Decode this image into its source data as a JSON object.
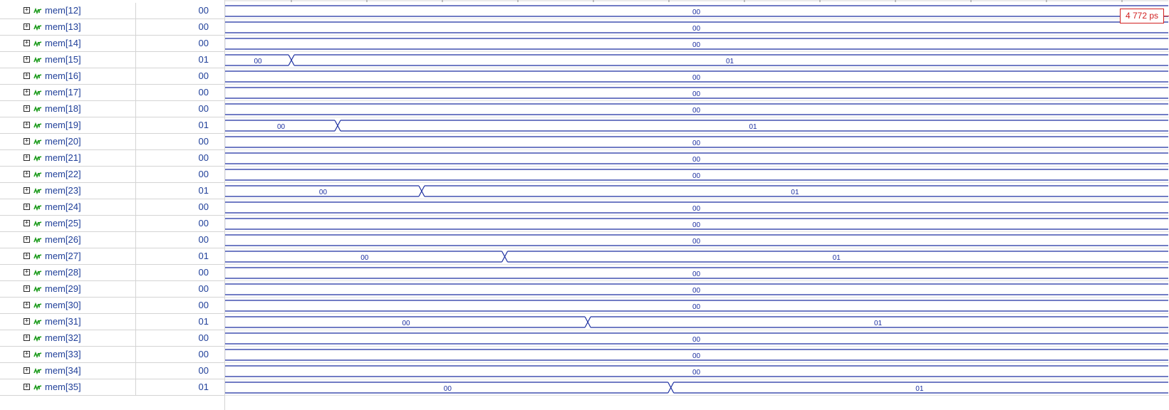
{
  "rows": [
    {
      "name": "mem[12]",
      "value": "00",
      "waveform": {
        "segments": [
          {
            "value": "00"
          }
        ],
        "transition_fraction": null
      }
    },
    {
      "name": "mem[13]",
      "value": "00",
      "waveform": {
        "segments": [
          {
            "value": "00"
          }
        ],
        "transition_fraction": null
      }
    },
    {
      "name": "mem[14]",
      "value": "00",
      "waveform": {
        "segments": [
          {
            "value": "00"
          }
        ],
        "transition_fraction": null
      }
    },
    {
      "name": "mem[15]",
      "value": "01",
      "waveform": {
        "segments": [
          {
            "value": "00"
          },
          {
            "value": "01"
          }
        ],
        "transition_fraction": 0.071
      }
    },
    {
      "name": "mem[16]",
      "value": "00",
      "waveform": {
        "segments": [
          {
            "value": "00"
          }
        ],
        "transition_fraction": null
      }
    },
    {
      "name": "mem[17]",
      "value": "00",
      "waveform": {
        "segments": [
          {
            "value": "00"
          }
        ],
        "transition_fraction": null
      }
    },
    {
      "name": "mem[18]",
      "value": "00",
      "waveform": {
        "segments": [
          {
            "value": "00"
          }
        ],
        "transition_fraction": null
      }
    },
    {
      "name": "mem[19]",
      "value": "01",
      "waveform": {
        "segments": [
          {
            "value": "00"
          },
          {
            "value": "01"
          }
        ],
        "transition_fraction": 0.12
      }
    },
    {
      "name": "mem[20]",
      "value": "00",
      "waveform": {
        "segments": [
          {
            "value": "00"
          }
        ],
        "transition_fraction": null
      }
    },
    {
      "name": "mem[21]",
      "value": "00",
      "waveform": {
        "segments": [
          {
            "value": "00"
          }
        ],
        "transition_fraction": null
      }
    },
    {
      "name": "mem[22]",
      "value": "00",
      "waveform": {
        "segments": [
          {
            "value": "00"
          }
        ],
        "transition_fraction": null
      }
    },
    {
      "name": "mem[23]",
      "value": "01",
      "waveform": {
        "segments": [
          {
            "value": "00"
          },
          {
            "value": "01"
          }
        ],
        "transition_fraction": 0.209
      }
    },
    {
      "name": "mem[24]",
      "value": "00",
      "waveform": {
        "segments": [
          {
            "value": "00"
          }
        ],
        "transition_fraction": null
      }
    },
    {
      "name": "mem[25]",
      "value": "00",
      "waveform": {
        "segments": [
          {
            "value": "00"
          }
        ],
        "transition_fraction": null
      }
    },
    {
      "name": "mem[26]",
      "value": "00",
      "waveform": {
        "segments": [
          {
            "value": "00"
          }
        ],
        "transition_fraction": null
      }
    },
    {
      "name": "mem[27]",
      "value": "01",
      "waveform": {
        "segments": [
          {
            "value": "00"
          },
          {
            "value": "01"
          }
        ],
        "transition_fraction": 0.297
      }
    },
    {
      "name": "mem[28]",
      "value": "00",
      "waveform": {
        "segments": [
          {
            "value": "00"
          }
        ],
        "transition_fraction": null
      }
    },
    {
      "name": "mem[29]",
      "value": "00",
      "waveform": {
        "segments": [
          {
            "value": "00"
          }
        ],
        "transition_fraction": null
      }
    },
    {
      "name": "mem[30]",
      "value": "00",
      "waveform": {
        "segments": [
          {
            "value": "00"
          }
        ],
        "transition_fraction": null
      }
    },
    {
      "name": "mem[31]",
      "value": "01",
      "waveform": {
        "segments": [
          {
            "value": "00"
          },
          {
            "value": "01"
          }
        ],
        "transition_fraction": 0.385
      }
    },
    {
      "name": "mem[32]",
      "value": "00",
      "waveform": {
        "segments": [
          {
            "value": "00"
          }
        ],
        "transition_fraction": null
      }
    },
    {
      "name": "mem[33]",
      "value": "00",
      "waveform": {
        "segments": [
          {
            "value": "00"
          }
        ],
        "transition_fraction": null
      }
    },
    {
      "name": "mem[34]",
      "value": "00",
      "waveform": {
        "segments": [
          {
            "value": "00"
          }
        ],
        "transition_fraction": null
      }
    },
    {
      "name": "mem[35]",
      "value": "01",
      "waveform": {
        "segments": [
          {
            "value": "00"
          },
          {
            "value": "01"
          }
        ],
        "transition_fraction": 0.473
      }
    }
  ],
  "cursor": {
    "label": "4 772 ps"
  },
  "icons": {
    "expand": "expand-plus-icon",
    "bus": "bus-signal-icon"
  },
  "colors": {
    "wave": "#1c2fa0",
    "text": "#1f3f99",
    "bus_icon": "#1a9a1a",
    "cursor": "#d12020",
    "grid": "#d4d4d4",
    "row_separator": "#c9c9c9"
  }
}
